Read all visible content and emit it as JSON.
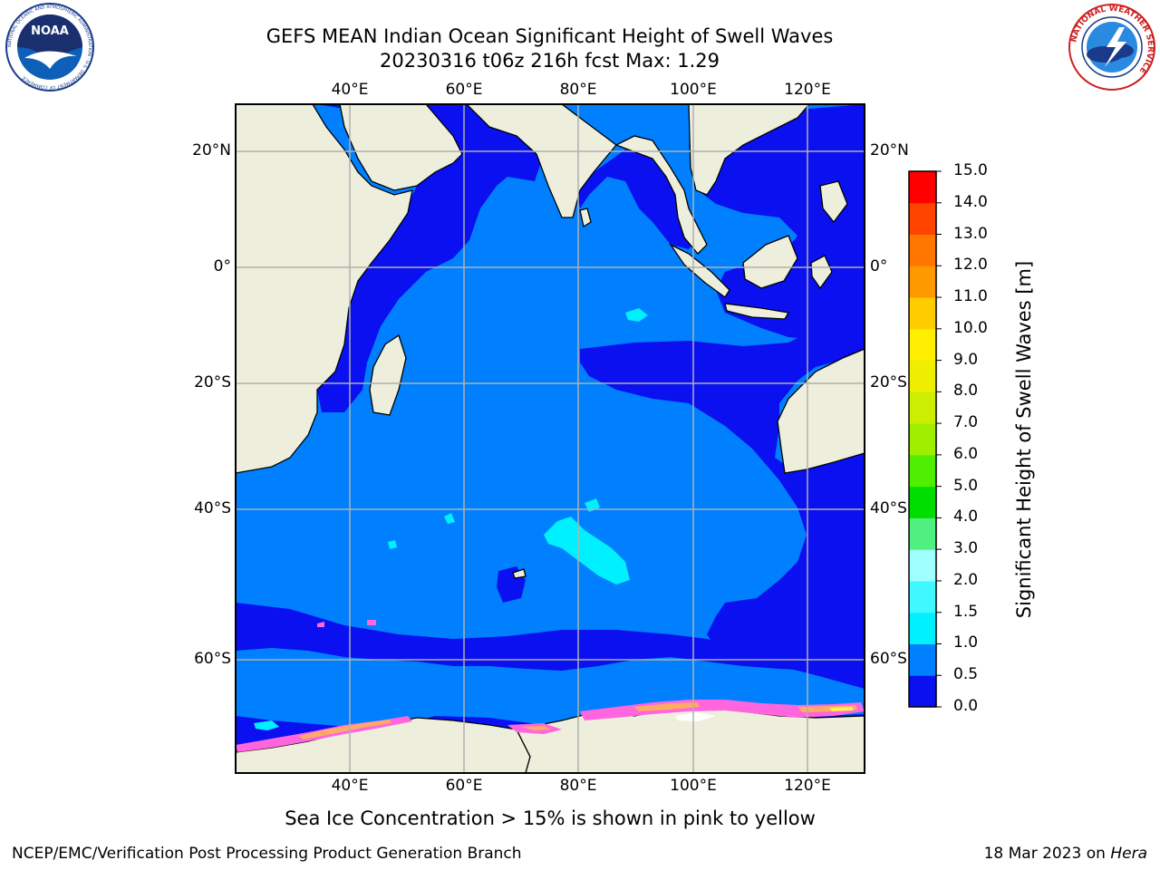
{
  "title": {
    "line1": "GEFS MEAN Indian Ocean Significant Height of Swell Waves",
    "line2": "20230316 t06z 216h fcst   Max: 1.29"
  },
  "logos": {
    "left": {
      "text": "NOAA",
      "ring_text": "NATIONAL OCEANIC AND ATMOSPHERIC ADMINISTRATION · U.S. DEPARTMENT OF COMMERCE"
    },
    "right": {
      "ring_text": "NATIONAL WEATHER SERVICE"
    }
  },
  "map": {
    "lon_labels": [
      "40°E",
      "60°E",
      "80°E",
      "100°E",
      "120°E"
    ],
    "lat_labels": [
      "20°N",
      "0°",
      "20°S",
      "40°S",
      "60°S"
    ],
    "colors": {
      "land": "#eeeedd",
      "grid": "#b0b0b0",
      "swell_0_05": "#0a10f0",
      "swell_05_10": "#0080ff",
      "swell_10_15": "#00f0ff",
      "ice_pink": "#ff66dd",
      "ice_orange": "#ffaa66",
      "ice_yellow": "#ffee55"
    }
  },
  "colorbar": {
    "label": "Significant Height of Swell Waves [m]",
    "ticks": [
      "0.0",
      "0.5",
      "1.0",
      "1.5",
      "2.0",
      "3.0",
      "4.0",
      "5.0",
      "6.0",
      "7.0",
      "8.0",
      "9.0",
      "10.0",
      "11.0",
      "12.0",
      "13.0",
      "14.0",
      "15.0"
    ],
    "colors": [
      "#0a10f0",
      "#0080ff",
      "#00f0ff",
      "#40f8ff",
      "#a0ffff",
      "#50f080",
      "#00dd00",
      "#50ee00",
      "#a0ee00",
      "#ccee00",
      "#eeee00",
      "#ffee00",
      "#ffcc00",
      "#ff9900",
      "#ff7700",
      "#ff4400",
      "#ff0000"
    ]
  },
  "footer": {
    "ice_note": "Sea Ice Concentration > 15% is shown in pink to yellow",
    "credit": "NCEP/EMC/Verification Post Processing Product Generation Branch",
    "date": "18 Mar 2023 on ",
    "machine": "Hera"
  }
}
